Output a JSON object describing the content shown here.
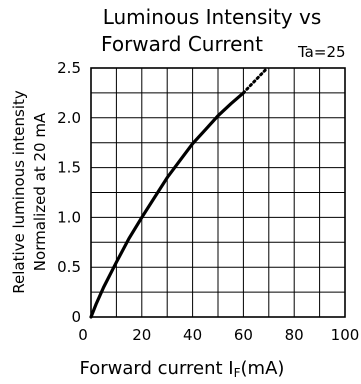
{
  "chart_data": {
    "type": "line",
    "title_lines": [
      "Luminous Intensity vs",
      "Forward Current"
    ],
    "condition_label": "Ta=25",
    "ylabel_lines": [
      "Relative luminous intensity",
      "Normalized at 20 mA"
    ],
    "xlabel_main": "Forward current I",
    "xlabel_sub": "F",
    "xlabel_unit": "(mA)",
    "xlim": [
      0,
      100
    ],
    "ylim": [
      0,
      2.5
    ],
    "x_ticks": [
      0,
      20,
      40,
      60,
      80,
      100
    ],
    "x_tick_labels": [
      "0",
      "20",
      "40",
      "60",
      "80",
      "100"
    ],
    "y_ticks": [
      0,
      0.5,
      1.0,
      1.5,
      2.0,
      2.5
    ],
    "y_tick_labels": [
      "0",
      "0.5",
      "1.0",
      "1.5",
      "2.0",
      "2.5"
    ],
    "grid": true,
    "series": [
      {
        "style": "solid",
        "color": "#000000",
        "x": [
          0,
          2,
          5,
          10,
          15,
          20,
          25,
          30,
          35,
          40,
          45,
          50,
          55,
          60
        ],
        "y": [
          0,
          0.13,
          0.3,
          0.55,
          0.79,
          1.0,
          1.2,
          1.4,
          1.57,
          1.74,
          1.88,
          2.02,
          2.14,
          2.25
        ]
      },
      {
        "style": "dotted",
        "color": "#000000",
        "x": [
          60,
          63,
          66,
          69
        ],
        "y": [
          2.25,
          2.33,
          2.41,
          2.49
        ]
      }
    ]
  }
}
